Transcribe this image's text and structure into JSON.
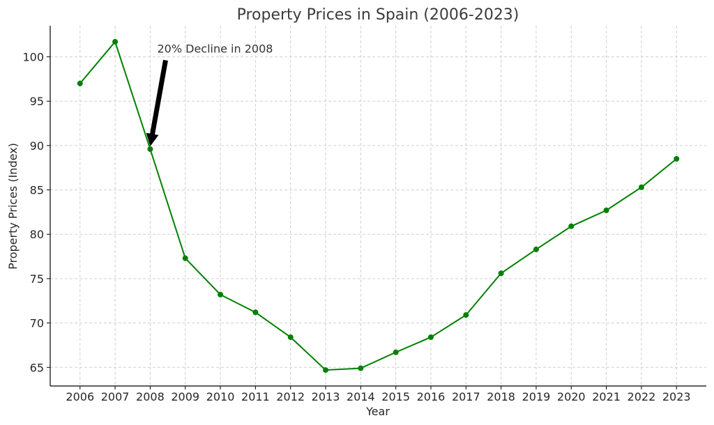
{
  "chart_data": {
    "type": "line",
    "title": "Property Prices in Spain (2006-2023)",
    "xlabel": "Year",
    "ylabel": "Property Prices (Index)",
    "x": [
      2006,
      2007,
      2008,
      2009,
      2010,
      2011,
      2012,
      2013,
      2014,
      2015,
      2016,
      2017,
      2018,
      2019,
      2020,
      2021,
      2022,
      2023
    ],
    "series": [
      {
        "values": [
          97.0,
          101.7,
          89.6,
          77.3,
          73.2,
          71.2,
          68.4,
          64.7,
          64.9,
          66.7,
          68.4,
          70.9,
          75.6,
          78.3,
          80.9,
          82.7,
          85.3,
          88.5
        ],
        "color": "#008000",
        "marker": "circle"
      }
    ],
    "yticks": [
      65,
      70,
      75,
      80,
      85,
      90,
      95,
      100
    ],
    "ylim": [
      62.9,
      103.5
    ],
    "xlim": [
      2005.15,
      2023.85
    ],
    "grid": true,
    "annotation": {
      "text": "20% Decline in 2008",
      "target_x": 2008,
      "target_y": 89.6,
      "text_x": 2008.2,
      "text_y": 99.3
    }
  }
}
